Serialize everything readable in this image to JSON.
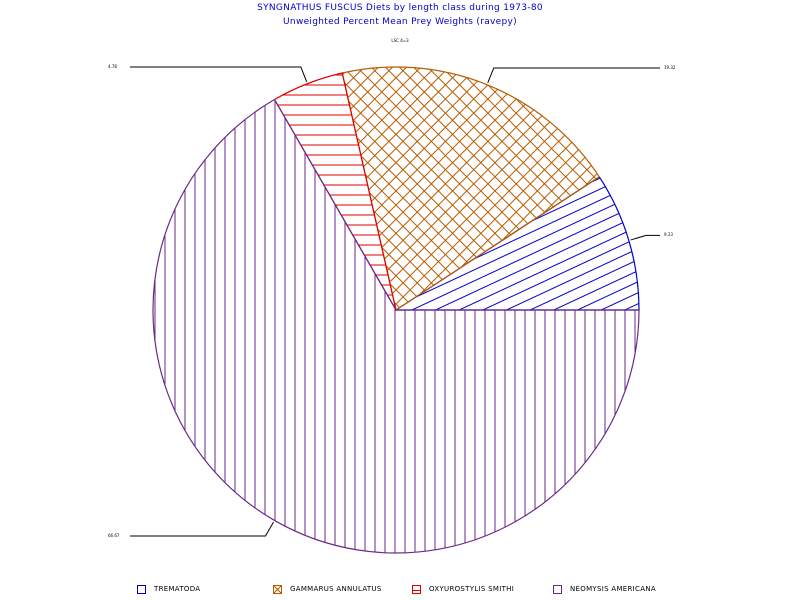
{
  "chart_data": {
    "type": "pie",
    "title": "SYNGNATHUS FUSCUS Diets by length class during 1973-80",
    "subtitle": "Unweighted Percent Mean Prey Weights (ravepy)",
    "group_label": "LSC 4=3",
    "slices": [
      {
        "label": "TREMATODA",
        "value": 9.23,
        "value_label": "9.23",
        "color": "#0000cc",
        "pattern": "diagonal"
      },
      {
        "label": "GAMMARUS ANNULATUS",
        "value": 19.32,
        "value_label": "19.32",
        "color": "#b85c00",
        "pattern": "crosshatch"
      },
      {
        "label": "OXYUROSTYLIS SMITHI",
        "value": 4.78,
        "value_label": "4.78",
        "color": "#e00000",
        "pattern": "horizontal"
      },
      {
        "label": "NEOMYSIS AMERICANA",
        "value": 66.67,
        "value_label": "66.67",
        "color": "#6a2a8a",
        "pattern": "vertical"
      }
    ],
    "start_angle_deg": 0,
    "direction": "counterclockwise",
    "legend_position": "bottom"
  }
}
